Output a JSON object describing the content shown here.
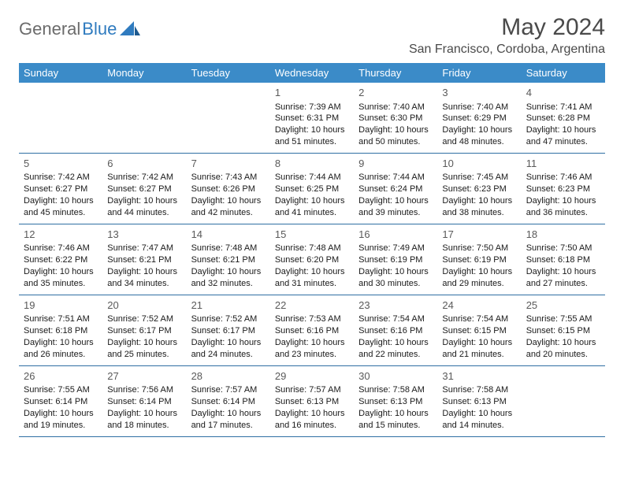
{
  "logo": {
    "text1": "General",
    "text2": "Blue"
  },
  "title": "May 2024",
  "location": "San Francisco, Cordoba, Argentina",
  "colors": {
    "header_bg": "#3b8bc8",
    "header_text": "#ffffff",
    "border": "#2f6fa3",
    "logo_gray": "#6b6b6b",
    "logo_blue": "#2f7bbf",
    "title_color": "#4a4a4a"
  },
  "weekdays": [
    "Sunday",
    "Monday",
    "Tuesday",
    "Wednesday",
    "Thursday",
    "Friday",
    "Saturday"
  ],
  "firstDayOffset": 3,
  "days": [
    {
      "n": 1,
      "sr": "7:39 AM",
      "ss": "6:31 PM",
      "dl": "10 hours and 51 minutes."
    },
    {
      "n": 2,
      "sr": "7:40 AM",
      "ss": "6:30 PM",
      "dl": "10 hours and 50 minutes."
    },
    {
      "n": 3,
      "sr": "7:40 AM",
      "ss": "6:29 PM",
      "dl": "10 hours and 48 minutes."
    },
    {
      "n": 4,
      "sr": "7:41 AM",
      "ss": "6:28 PM",
      "dl": "10 hours and 47 minutes."
    },
    {
      "n": 5,
      "sr": "7:42 AM",
      "ss": "6:27 PM",
      "dl": "10 hours and 45 minutes."
    },
    {
      "n": 6,
      "sr": "7:42 AM",
      "ss": "6:27 PM",
      "dl": "10 hours and 44 minutes."
    },
    {
      "n": 7,
      "sr": "7:43 AM",
      "ss": "6:26 PM",
      "dl": "10 hours and 42 minutes."
    },
    {
      "n": 8,
      "sr": "7:44 AM",
      "ss": "6:25 PM",
      "dl": "10 hours and 41 minutes."
    },
    {
      "n": 9,
      "sr": "7:44 AM",
      "ss": "6:24 PM",
      "dl": "10 hours and 39 minutes."
    },
    {
      "n": 10,
      "sr": "7:45 AM",
      "ss": "6:23 PM",
      "dl": "10 hours and 38 minutes."
    },
    {
      "n": 11,
      "sr": "7:46 AM",
      "ss": "6:23 PM",
      "dl": "10 hours and 36 minutes."
    },
    {
      "n": 12,
      "sr": "7:46 AM",
      "ss": "6:22 PM",
      "dl": "10 hours and 35 minutes."
    },
    {
      "n": 13,
      "sr": "7:47 AM",
      "ss": "6:21 PM",
      "dl": "10 hours and 34 minutes."
    },
    {
      "n": 14,
      "sr": "7:48 AM",
      "ss": "6:21 PM",
      "dl": "10 hours and 32 minutes."
    },
    {
      "n": 15,
      "sr": "7:48 AM",
      "ss": "6:20 PM",
      "dl": "10 hours and 31 minutes."
    },
    {
      "n": 16,
      "sr": "7:49 AM",
      "ss": "6:19 PM",
      "dl": "10 hours and 30 minutes."
    },
    {
      "n": 17,
      "sr": "7:50 AM",
      "ss": "6:19 PM",
      "dl": "10 hours and 29 minutes."
    },
    {
      "n": 18,
      "sr": "7:50 AM",
      "ss": "6:18 PM",
      "dl": "10 hours and 27 minutes."
    },
    {
      "n": 19,
      "sr": "7:51 AM",
      "ss": "6:18 PM",
      "dl": "10 hours and 26 minutes."
    },
    {
      "n": 20,
      "sr": "7:52 AM",
      "ss": "6:17 PM",
      "dl": "10 hours and 25 minutes."
    },
    {
      "n": 21,
      "sr": "7:52 AM",
      "ss": "6:17 PM",
      "dl": "10 hours and 24 minutes."
    },
    {
      "n": 22,
      "sr": "7:53 AM",
      "ss": "6:16 PM",
      "dl": "10 hours and 23 minutes."
    },
    {
      "n": 23,
      "sr": "7:54 AM",
      "ss": "6:16 PM",
      "dl": "10 hours and 22 minutes."
    },
    {
      "n": 24,
      "sr": "7:54 AM",
      "ss": "6:15 PM",
      "dl": "10 hours and 21 minutes."
    },
    {
      "n": 25,
      "sr": "7:55 AM",
      "ss": "6:15 PM",
      "dl": "10 hours and 20 minutes."
    },
    {
      "n": 26,
      "sr": "7:55 AM",
      "ss": "6:14 PM",
      "dl": "10 hours and 19 minutes."
    },
    {
      "n": 27,
      "sr": "7:56 AM",
      "ss": "6:14 PM",
      "dl": "10 hours and 18 minutes."
    },
    {
      "n": 28,
      "sr": "7:57 AM",
      "ss": "6:14 PM",
      "dl": "10 hours and 17 minutes."
    },
    {
      "n": 29,
      "sr": "7:57 AM",
      "ss": "6:13 PM",
      "dl": "10 hours and 16 minutes."
    },
    {
      "n": 30,
      "sr": "7:58 AM",
      "ss": "6:13 PM",
      "dl": "10 hours and 15 minutes."
    },
    {
      "n": 31,
      "sr": "7:58 AM",
      "ss": "6:13 PM",
      "dl": "10 hours and 14 minutes."
    }
  ],
  "labels": {
    "sunrise": "Sunrise:",
    "sunset": "Sunset:",
    "daylight": "Daylight:"
  }
}
